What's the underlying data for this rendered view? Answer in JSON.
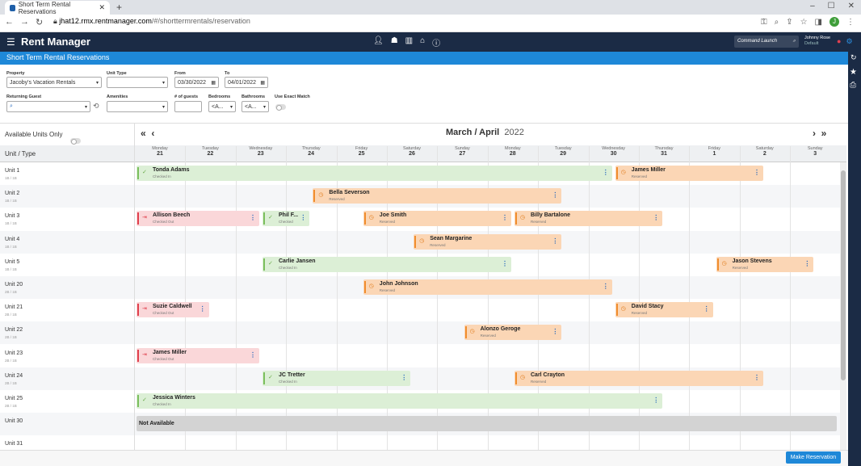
{
  "browser": {
    "tab_title": "Short Term Rental Reservations",
    "url_host": "jhat12.rmx.rentmanager.com",
    "url_path": "/#/shorttermrentals/reservation",
    "profile_initial": "J"
  },
  "app": {
    "brand": "Rent Manager",
    "command_launch_placeholder": "Command Launch",
    "user_name": "Johnny Rose",
    "user_sub": "Default"
  },
  "page": {
    "title": "Short Term Rental Reservations"
  },
  "filters": {
    "property_label": "Property",
    "property_value": "Jacoby's Vacation Rentals",
    "unit_type_label": "Unit Type",
    "unit_type_value": "",
    "from_label": "From",
    "from_value": "03/30/2022",
    "to_label": "To",
    "to_value": "04/01/2022",
    "returning_guest_label": "Returning Guest",
    "amenities_label": "Amenities",
    "guests_label": "# of guests",
    "bedrooms_label": "Bedrooms",
    "bedrooms_value": "<A...",
    "bathrooms_label": "Bathrooms",
    "bathrooms_value": "<A...",
    "exact_match_label": "Use Exact Match"
  },
  "calendar": {
    "available_only_label": "Available Units Only",
    "month_title": "March / April",
    "year": "2022",
    "unit_type_header": "Unit / Type",
    "days": [
      {
        "name": "Monday",
        "num": "21"
      },
      {
        "name": "Tuesday",
        "num": "22"
      },
      {
        "name": "Wednesday",
        "num": "23"
      },
      {
        "name": "Thursday",
        "num": "24"
      },
      {
        "name": "Friday",
        "num": "25"
      },
      {
        "name": "Saturday",
        "num": "26"
      },
      {
        "name": "Sunday",
        "num": "27"
      },
      {
        "name": "Monday",
        "num": "28"
      },
      {
        "name": "Tuesday",
        "num": "29"
      },
      {
        "name": "Wednesday",
        "num": "30"
      },
      {
        "name": "Thursday",
        "num": "31"
      },
      {
        "name": "Friday",
        "num": "1"
      },
      {
        "name": "Saturday",
        "num": "2"
      },
      {
        "name": "Sunday",
        "num": "3"
      }
    ],
    "units": [
      {
        "name": "Unit 1",
        "sub": "1B / 1B"
      },
      {
        "name": "Unit 2",
        "sub": "1B / 1B"
      },
      {
        "name": "Unit 3",
        "sub": "1B / 1B"
      },
      {
        "name": "Unit 4",
        "sub": "1B / 1B"
      },
      {
        "name": "Unit 5",
        "sub": "1B / 1B"
      },
      {
        "name": "Unit 20",
        "sub": "2B / 1B"
      },
      {
        "name": "Unit 21",
        "sub": "2B / 1B"
      },
      {
        "name": "Unit 22",
        "sub": "2B / 1B"
      },
      {
        "name": "Unit 23",
        "sub": "2B / 1B"
      },
      {
        "name": "Unit 24",
        "sub": "2B / 1B"
      },
      {
        "name": "Unit 25",
        "sub": "2B / 1B"
      },
      {
        "name": "Unit 30",
        "sub": ""
      },
      {
        "name": "Unit 31",
        "sub": ""
      }
    ],
    "reservations": [
      {
        "row": 0,
        "start": 0,
        "span": 9.5,
        "guest": "Tonda Adams",
        "status": "Checked In",
        "kind": "in"
      },
      {
        "row": 0,
        "start": 9.5,
        "span": 3,
        "guest": "James Miller",
        "status": "Reserved",
        "kind": "rsv"
      },
      {
        "row": 1,
        "start": 3.5,
        "span": 5,
        "guest": "Bella Severson",
        "status": "Reserved",
        "kind": "rsv"
      },
      {
        "row": 2,
        "start": 0,
        "span": 2.5,
        "guest": "Allison Beech",
        "status": "Checked Out",
        "kind": "out"
      },
      {
        "row": 2,
        "start": 2.5,
        "span": 1,
        "guest": "Phil F...",
        "status": "Checked",
        "kind": "in"
      },
      {
        "row": 2,
        "start": 4.5,
        "span": 3,
        "guest": "Joe Smith",
        "status": "Reserved",
        "kind": "rsv"
      },
      {
        "row": 2,
        "start": 7.5,
        "span": 3,
        "guest": "Billy Bartalone",
        "status": "Reserved",
        "kind": "rsv"
      },
      {
        "row": 3,
        "start": 5.5,
        "span": 3,
        "guest": "Sean Margarine",
        "status": "Reserved",
        "kind": "rsv"
      },
      {
        "row": 4,
        "start": 2.5,
        "span": 5,
        "guest": "Carlie Jansen",
        "status": "Checked In",
        "kind": "in"
      },
      {
        "row": 4,
        "start": 11.5,
        "span": 2,
        "guest": "Jason Stevens",
        "status": "Reserved",
        "kind": "rsv"
      },
      {
        "row": 5,
        "start": 4.5,
        "span": 5,
        "guest": "John Johnson",
        "status": "Reserved",
        "kind": "rsv"
      },
      {
        "row": 6,
        "start": 0,
        "span": 1.5,
        "guest": "Suzie Caldwell",
        "status": "Checked Out",
        "kind": "out"
      },
      {
        "row": 6,
        "start": 9.5,
        "span": 2,
        "guest": "David Stacy",
        "status": "Reserved",
        "kind": "rsv"
      },
      {
        "row": 7,
        "start": 6.5,
        "span": 2,
        "guest": "Alonzo Geroge",
        "status": "Reserved",
        "kind": "rsv"
      },
      {
        "row": 8,
        "start": 0,
        "span": 2.5,
        "guest": "James Miller",
        "status": "Checked Out",
        "kind": "out"
      },
      {
        "row": 9,
        "start": 2.5,
        "span": 3,
        "guest": "JC Tretter",
        "status": "Checked In",
        "kind": "in"
      },
      {
        "row": 9,
        "start": 7.5,
        "span": 5,
        "guest": "Carl Crayton",
        "status": "Reserved",
        "kind": "rsv"
      },
      {
        "row": 10,
        "start": 0,
        "span": 10.5,
        "guest": "Jessica Winters",
        "status": "Checked In",
        "kind": "in"
      },
      {
        "row": 11,
        "start": 0,
        "span": 14,
        "guest": "Not Available",
        "status": "",
        "kind": "na"
      }
    ]
  },
  "actions": {
    "make_reservation": "Make Reservation"
  }
}
